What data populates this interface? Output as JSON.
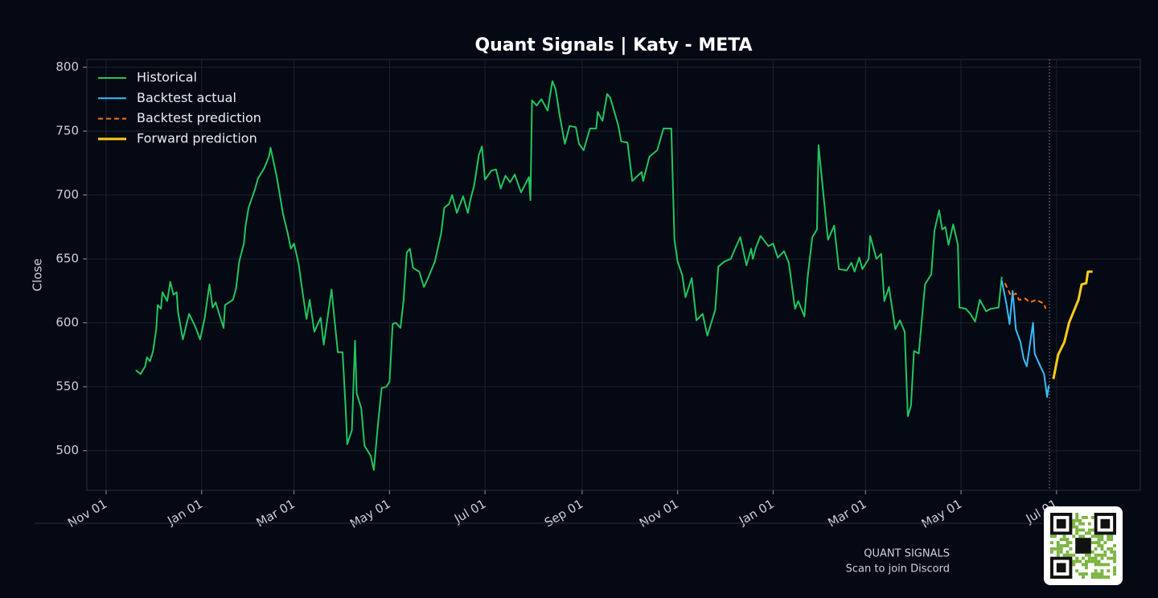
{
  "chart_data": {
    "type": "line",
    "title": "Quant Signals | Katy - META",
    "y_label": "Close",
    "xlim": [
      -12.3,
      660.5
    ],
    "ylim": [
      469,
      806
    ],
    "xticks": [
      {
        "value": 0,
        "label": "Nov 01"
      },
      {
        "value": 61,
        "label": "Jan 01"
      },
      {
        "value": 120,
        "label": "Mar 01"
      },
      {
        "value": 181,
        "label": "May 01"
      },
      {
        "value": 242,
        "label": "Jul 01"
      },
      {
        "value": 304,
        "label": "Sep 01"
      },
      {
        "value": 365,
        "label": "Nov 01"
      },
      {
        "value": 426,
        "label": "Jan 01"
      },
      {
        "value": 485,
        "label": "Mar 01"
      },
      {
        "value": 546,
        "label": "May 01"
      },
      {
        "value": 607,
        "label": "Jul 01"
      }
    ],
    "yticks": [
      500,
      550,
      600,
      650,
      700,
      750,
      800
    ],
    "grid": true,
    "legend": "upper left",
    "vline": 602.5,
    "series": [
      {
        "name": "Historical",
        "color": "#22c55e",
        "dash": false,
        "width": 2,
        "x": [
          19,
          22,
          25,
          26,
          28,
          30,
          32,
          33,
          35,
          36,
          39,
          41,
          43,
          45,
          46,
          49,
          53,
          57,
          60,
          63,
          66,
          68,
          70,
          72,
          75,
          76,
          81,
          83,
          85,
          88,
          89,
          91,
          95,
          97,
          101,
          104,
          105,
          109,
          113,
          116,
          118,
          120,
          123,
          125,
          128,
          130,
          133,
          137,
          139,
          144,
          146,
          148,
          151,
          153,
          154,
          157,
          159,
          160,
          163,
          165,
          169,
          171,
          174,
          176,
          179,
          181,
          183,
          185,
          188,
          190,
          192,
          194,
          196,
          200,
          203,
          206,
          210,
          214,
          216,
          219,
          221,
          224,
          228,
          231,
          233,
          235,
          238,
          240,
          242,
          246,
          249,
          252,
          255,
          258,
          261,
          265,
          270,
          271,
          272,
          275,
          278,
          282,
          285,
          287,
          290,
          293,
          296,
          300,
          302,
          305,
          309,
          313,
          314,
          317,
          320,
          322,
          327,
          329,
          333,
          336,
          342,
          343,
          347,
          352,
          356,
          361,
          363,
          365,
          368,
          370,
          374,
          377,
          381,
          384,
          389,
          391,
          395,
          399,
          401,
          405,
          409,
          412,
          413,
          415,
          418,
          423,
          426,
          429,
          433,
          436,
          440,
          442,
          446,
          448,
          451,
          454,
          455,
          458,
          461,
          465,
          468,
          473,
          476,
          478,
          481,
          483,
          487,
          488,
          492,
          495,
          497,
          500,
          504,
          507,
          510,
          512,
          514,
          516,
          519,
          523,
          527,
          529,
          532,
          534,
          536,
          538,
          541,
          544,
          545,
          549,
          552,
          555,
          558,
          562,
          565,
          570,
          572
        ],
        "values": [
          563,
          560,
          566,
          573,
          570,
          578,
          595,
          614,
          611,
          624,
          617,
          632,
          622,
          624,
          608,
          587,
          607,
          597,
          587,
          604,
          630,
          612,
          616,
          608,
          596,
          614,
          618,
          627,
          648,
          662,
          675,
          690,
          704,
          713,
          721,
          730,
          737,
          714,
          685,
          670,
          658,
          662,
          646,
          628,
          603,
          618,
          593,
          604,
          583,
          626,
          601,
          577,
          577,
          532,
          505,
          516,
          586,
          545,
          533,
          504,
          496,
          485,
          525,
          549,
          550,
          554,
          599,
          600,
          596,
          618,
          655,
          658,
          643,
          640,
          628,
          636,
          648,
          670,
          690,
          693,
          700,
          686,
          699,
          686,
          698,
          707,
          731,
          738,
          712,
          719,
          720,
          705,
          715,
          710,
          716,
          702,
          714,
          696,
          774,
          770,
          775,
          766,
          789,
          783,
          760,
          740,
          754,
          753,
          740,
          735,
          752,
          752,
          765,
          758,
          779,
          776,
          755,
          742,
          741,
          711,
          718,
          711,
          730,
          735,
          752,
          752,
          665,
          648,
          637,
          620,
          635,
          602,
          607,
          590,
          610,
          644,
          648,
          650,
          656,
          667,
          645,
          658,
          650,
          659,
          668,
          660,
          662,
          651,
          656,
          647,
          611,
          617,
          605,
          635,
          667,
          673,
          739,
          702,
          665,
          676,
          642,
          641,
          647,
          640,
          651,
          642,
          650,
          668,
          650,
          654,
          617,
          628,
          595,
          602,
          593,
          527,
          535,
          578,
          576,
          630,
          638,
          672,
          688,
          673,
          675,
          661,
          677,
          661,
          612,
          611,
          607,
          601,
          618,
          609,
          611,
          612,
          636
        ]
      },
      {
        "name": "Backtest actual",
        "color": "#38bdf8",
        "dash": false,
        "width": 2,
        "x": [
          572,
          575,
          577,
          579,
          581,
          584,
          586,
          588,
          592,
          593,
          597,
          599,
          601,
          602
        ],
        "values": [
          633,
          615,
          599,
          625,
          595,
          585,
          572,
          566,
          600,
          576,
          565,
          560,
          542,
          551
        ]
      },
      {
        "name": "Backtest prediction",
        "color": "#f97316",
        "dash": true,
        "width": 2,
        "x": [
          574,
          578,
          581,
          583,
          587,
          590,
          594,
          599,
          600
        ],
        "values": [
          631,
          621,
          623,
          618,
          619,
          616,
          618,
          615,
          611
        ]
      },
      {
        "name": "Forward prediction",
        "color": "#facc15",
        "dash": false,
        "width": 3,
        "x": [
          605,
          608,
          612,
          615,
          618,
          621,
          623,
          626,
          627,
          630
        ],
        "values": [
          556,
          575,
          585,
          600,
          609,
          618,
          630,
          631,
          640,
          640
        ]
      }
    ]
  },
  "footer": {
    "brand": "QUANT SIGNALS",
    "caption": "Scan to join Discord"
  }
}
